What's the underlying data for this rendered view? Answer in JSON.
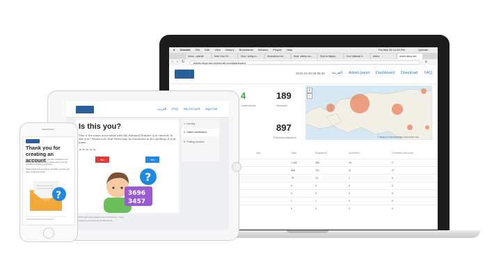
{
  "laptop": {
    "menubar": {
      "apple": "",
      "items": [
        "Chrome",
        "File",
        "Edit",
        "View",
        "History",
        "Bookmarks",
        "Window",
        "People",
        "Help"
      ],
      "right": "Thu Mar 26 12:34 PM",
      "user": "Quentin"
    },
    "tabs": [
      "Inbox - quentin",
      "Note Your St...",
      "How I doing m...",
      "Illustrations for...",
      "Dear, safety mo...",
      "Sold in Aleppo...",
      "Doc National S...",
      "Admo",
      "admin-libya.dev"
    ],
    "address": "admin-libya.dev.wiredcraft.com/dashboard",
    "header": {
      "datetime": "2015-03-26 08:58:46",
      "nav": [
        "العربية",
        "Admin panel",
        "Dashboard",
        "Download",
        "FAQ"
      ]
    },
    "stats": [
      {
        "value": "4",
        "label": "Confirmations"
      },
      {
        "value": "189",
        "label": "Download"
      },
      {
        "value": "897",
        "label": "Previously registered"
      }
    ],
    "map_credit": "© Mapbox © OpenStreetMap Improve this map",
    "table": {
      "headers": [
        "City",
        "Total",
        "Registered",
        "Unverified",
        "Unverified accounts"
      ],
      "rows": [
        [
          "",
          "1,369",
          "380",
          "46",
          "2"
        ],
        [
          "",
          "866",
          "761",
          "11",
          "97"
        ],
        [
          "",
          "78",
          "12",
          "1",
          "0"
        ],
        [
          "",
          "6",
          "6",
          "0",
          "0"
        ],
        [
          "",
          "3",
          "3",
          "0",
          "0"
        ],
        [
          "",
          "1",
          "1",
          "0",
          "0"
        ],
        [
          "",
          "0",
          "0",
          "0",
          "0"
        ]
      ]
    }
  },
  "tablet": {
    "nav": [
      "العربية",
      "FAQ",
      "My Account",
      "Sign Out"
    ],
    "title": "Is this you?",
    "body": "This is the name associated with the National Number you entered. Is this you? Please note that there may be variations in the spelling of your name.",
    "no_label": "No",
    "yes_label": "Yes",
    "steps": [
      "1. Identity",
      "2. Name verification",
      "3. Polling location"
    ],
    "card_digits": [
      "3696",
      "3457"
    ],
    "footer": "© 2015 High National Elections Commission - Libya",
    "footer_sub": "Developed and Produced by Wiredcraft"
  },
  "phone": {
    "title": "Thank you for creating an account",
    "body1": "An email has been sent to you with a verification link. When you receive this email, please click on the link provided to activate your account.",
    "body2": "Please check your spam/junk mail folder to ensure you have received the email."
  },
  "colors": {
    "link": "#2d7bc4",
    "green": "#3aaa35",
    "no_button": "#e53935",
    "yes_button": "#1e88e5",
    "envelope": "#f6b94a"
  }
}
